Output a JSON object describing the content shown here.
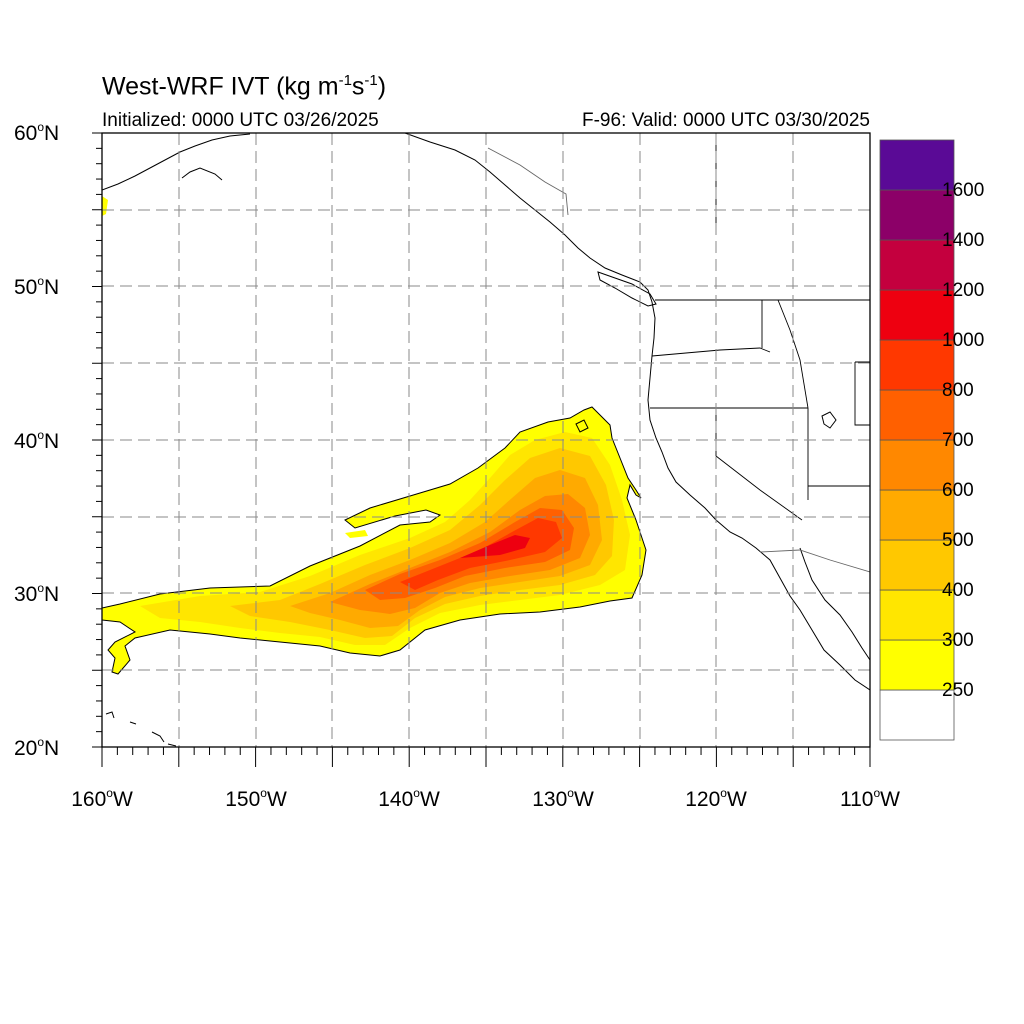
{
  "header": {
    "title_main": "West-WRF IVT (kg m",
    "title_sup1": "-1",
    "title_mid": "s",
    "title_sup2": "-1",
    "title_end": ")",
    "initialized": "Initialized: 0000 UTC 03/26/2025",
    "valid": "F-96: Valid: 0000 UTC 03/30/2025"
  },
  "axes": {
    "lat_labels": [
      {
        "value": "60",
        "hemi": "N"
      },
      {
        "value": "50",
        "hemi": "N"
      },
      {
        "value": "40",
        "hemi": "N"
      },
      {
        "value": "30",
        "hemi": "N"
      },
      {
        "value": "20",
        "hemi": "N"
      }
    ],
    "lon_labels": [
      {
        "value": "160",
        "hemi": "W"
      },
      {
        "value": "150",
        "hemi": "W"
      },
      {
        "value": "140",
        "hemi": "W"
      },
      {
        "value": "130",
        "hemi": "W"
      },
      {
        "value": "120",
        "hemi": "W"
      },
      {
        "value": "110",
        "hemi": "W"
      }
    ],
    "lat_range": [
      20,
      60
    ],
    "lon_range": [
      -160,
      -110
    ]
  },
  "colorbar": {
    "labels": [
      "1600",
      "1400",
      "1200",
      "1000",
      "800",
      "700",
      "600",
      "500",
      "400",
      "300",
      "250"
    ],
    "colors": [
      "#ffffff",
      "#ffff00",
      "#ffe600",
      "#ffc800",
      "#ffaa00",
      "#ff8800",
      "#ff6000",
      "#ff3800",
      "#ee0010",
      "#c4003e",
      "#8c0068",
      "#5a0a96"
    ]
  }
}
